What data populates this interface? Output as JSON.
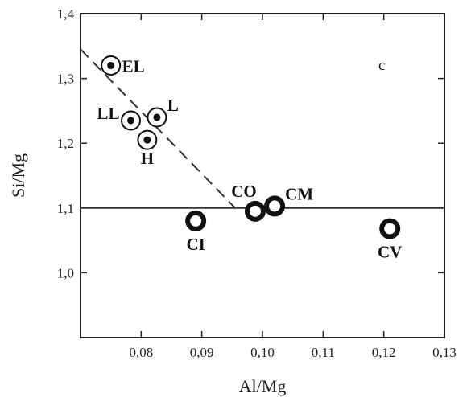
{
  "chart_data": {
    "type": "scatter",
    "title": "",
    "panel_label": "c",
    "xlabel": "Al/Mg",
    "ylabel": "Si/Mg",
    "xlim": [
      0.07,
      0.13
    ],
    "ylim": [
      0.9,
      1.4
    ],
    "xticks": [
      0.08,
      0.09,
      0.1,
      0.11,
      0.12,
      0.13
    ],
    "xtick_labels": [
      "0,08",
      "0,09",
      "0,10",
      "0,11",
      "0,12",
      "0,13"
    ],
    "yticks": [
      1.0,
      1.1,
      1.2,
      1.3,
      1.4
    ],
    "ytick_labels": [
      "1,0",
      "1,1",
      "1,2",
      "1,3",
      "1,4"
    ],
    "grid": false,
    "points": [
      {
        "label": "EL",
        "x": 0.075,
        "y": 1.32,
        "style": "dot",
        "label_pos": "right"
      },
      {
        "label": "LL",
        "x": 0.0783,
        "y": 1.235,
        "style": "dot",
        "label_pos": "left-up"
      },
      {
        "label": "L",
        "x": 0.0826,
        "y": 1.24,
        "style": "dot",
        "label_pos": "right-up"
      },
      {
        "label": "H",
        "x": 0.081,
        "y": 1.205,
        "style": "dot",
        "label_pos": "below"
      },
      {
        "label": "CI",
        "x": 0.089,
        "y": 1.08,
        "style": "ring",
        "label_pos": "below"
      },
      {
        "label": "CO",
        "x": 0.0988,
        "y": 1.095,
        "style": "ring",
        "label_pos": "up-left"
      },
      {
        "label": "CM",
        "x": 0.102,
        "y": 1.103,
        "style": "ring",
        "label_pos": "right-up"
      },
      {
        "label": "CV",
        "x": 0.121,
        "y": 1.068,
        "style": "ring",
        "label_pos": "below"
      }
    ],
    "reference_lines": [
      {
        "style": "solid",
        "points": [
          [
            0.07,
            1.1
          ],
          [
            0.13,
            1.1
          ]
        ]
      },
      {
        "style": "dashed",
        "points": [
          [
            0.07,
            1.345
          ],
          [
            0.0955,
            1.1
          ]
        ]
      }
    ]
  }
}
